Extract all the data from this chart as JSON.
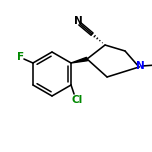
{
  "bg_color": "#ffffff",
  "bond_color": "#000000",
  "atom_colors": {
    "N": "#0000ff",
    "F": "#008800",
    "Cl": "#008800",
    "nitrile_N": "#000000"
  },
  "figsize": [
    1.52,
    1.52
  ],
  "dpi": 100,
  "lw": 1.15
}
